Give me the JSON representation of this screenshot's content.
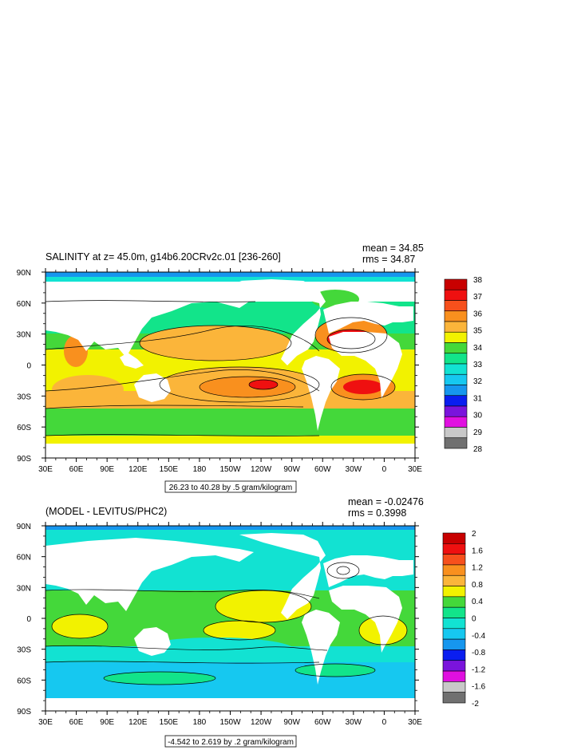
{
  "chart_data": [
    {
      "type": "heatmap",
      "title": "SALINITY at z=  45.0m, g14b6.20CRv2c.01 [236-260]",
      "stats": [
        "mean = 34.85",
        "rms = 34.87"
      ],
      "x_ticks": [
        "30E",
        "60E",
        "90E",
        "120E",
        "150E",
        "180",
        "150W",
        "120W",
        "90W",
        "60W",
        "30W",
        "0",
        "30E"
      ],
      "y_ticks": [
        "90N",
        "60N",
        "30N",
        "0",
        "30S",
        "60S",
        "90S"
      ],
      "contour_info": "26.23 to 40.28 by .5 gram/kilogram",
      "colorbar": {
        "labels": [
          "38",
          "37",
          "36",
          "35",
          "34",
          "33",
          "32",
          "31",
          "30",
          "29",
          "28"
        ],
        "colors": [
          "#c80000",
          "#ef1010",
          "#f7501c",
          "#f9901e",
          "#fbb53a",
          "#f2f200",
          "#44d83a",
          "#12e48a",
          "#12e2d2",
          "#16c8f0",
          "#1696ee",
          "#0a1ef0",
          "#7a14dc",
          "#e010e0",
          "#c8c8c8",
          "#707070"
        ]
      },
      "xlim": [
        30,
        390
      ],
      "ylim": [
        -90,
        90
      ]
    },
    {
      "type": "heatmap",
      "title": "(MODEL - LEVITUS/PHC2)",
      "stats": [
        "mean = -0.02476",
        "rms = 0.3998"
      ],
      "x_ticks": [
        "30E",
        "60E",
        "90E",
        "120E",
        "150E",
        "180",
        "150W",
        "120W",
        "90W",
        "60W",
        "30W",
        "0",
        "30E"
      ],
      "y_ticks": [
        "90N",
        "60N",
        "30N",
        "0",
        "30S",
        "60S",
        "90S"
      ],
      "contour_info": "-4.542 to 2.619 by .2 gram/kilogram",
      "colorbar": {
        "labels": [
          "2",
          "1.6",
          "1.2",
          "0.8",
          "0.4",
          "0",
          "-0.4",
          "-0.8",
          "-1.2",
          "-1.6",
          "-2"
        ],
        "colors": [
          "#c80000",
          "#ef1010",
          "#f7501c",
          "#f9901e",
          "#fbb53a",
          "#f2f200",
          "#44d83a",
          "#12e48a",
          "#12e2d2",
          "#16c8f0",
          "#1696ee",
          "#0a1ef0",
          "#7a14dc",
          "#e010e0",
          "#c8c8c8",
          "#707070"
        ]
      },
      "xlim": [
        30,
        390
      ],
      "ylim": [
        -90,
        90
      ]
    }
  ]
}
